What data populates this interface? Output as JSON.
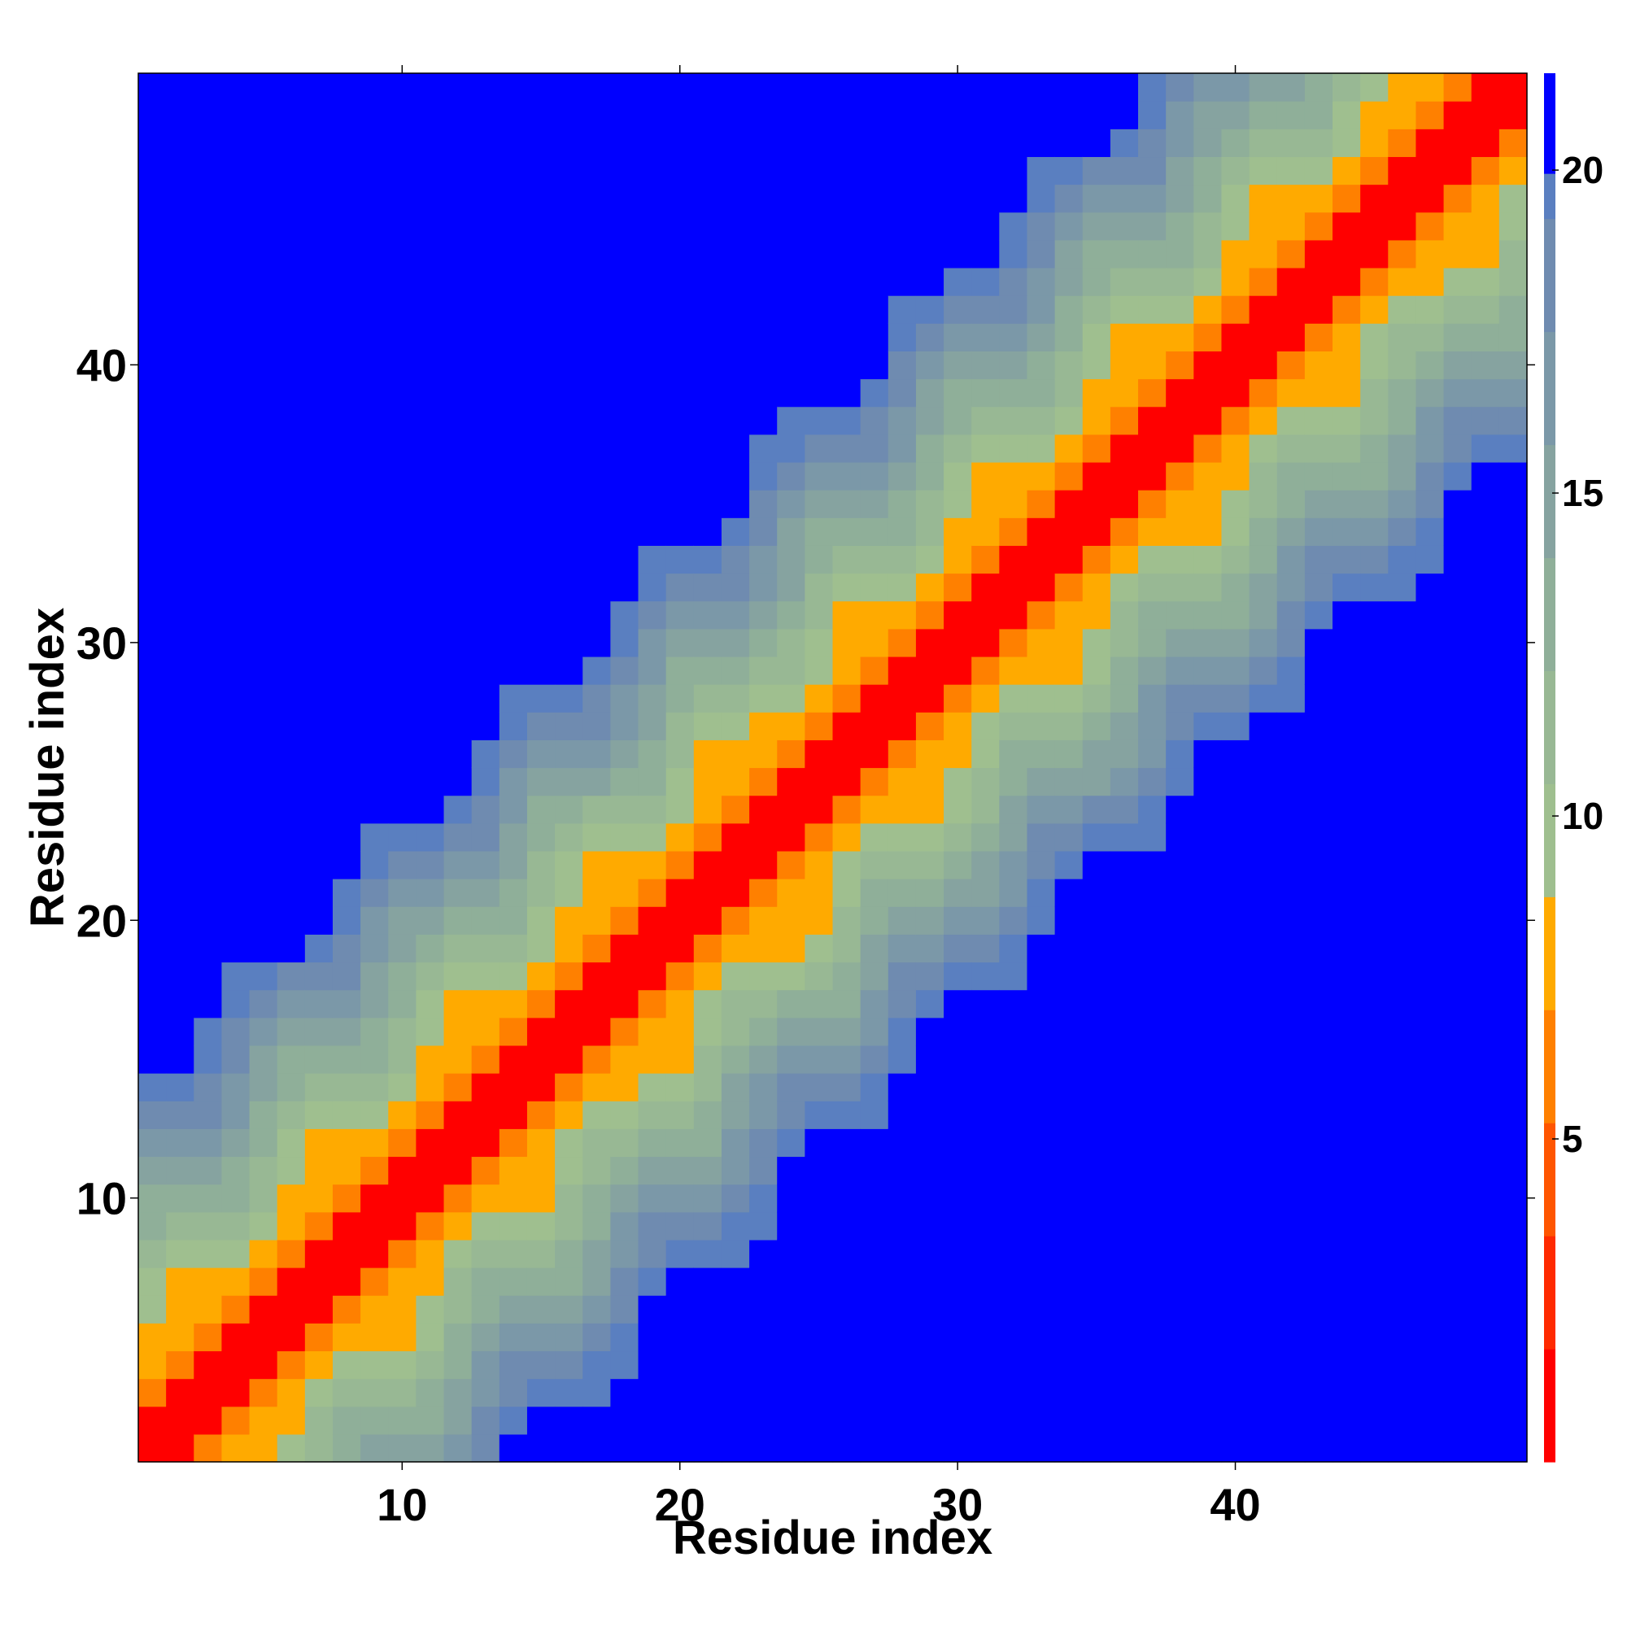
{
  "chart_data": {
    "type": "heatmap",
    "title": "",
    "xlabel": "Residue index",
    "ylabel": "Residue index",
    "n": 50,
    "xlim": [
      0.5,
      50.5
    ],
    "ylim": [
      0.5,
      50.5
    ],
    "x_ticks": [
      10,
      20,
      30,
      40
    ],
    "y_ticks": [
      10,
      20,
      30,
      40
    ],
    "matrix_description": "Symmetric residue-residue distance map: values grow with |i-j|; cells beyond cutoff (~21) shown in saturated blue",
    "cutoff": 21,
    "colorbar": {
      "min": 0,
      "max": 21.5,
      "ticks": [
        5,
        10,
        15,
        20
      ],
      "colors": [
        "#ff0000",
        "#ff2a00",
        "#ff5500",
        "#ff8000",
        "#ffaa00",
        "#9fbf8f",
        "#98b894",
        "#8faf99",
        "#86a3a0",
        "#7b98a8",
        "#6f8bb0",
        "#5a7fc0",
        "#0000ff"
      ]
    }
  }
}
